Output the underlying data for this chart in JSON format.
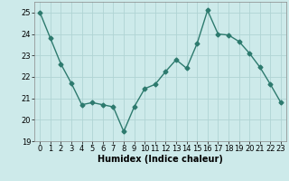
{
  "x": [
    0,
    1,
    2,
    3,
    4,
    5,
    6,
    7,
    8,
    9,
    10,
    11,
    12,
    13,
    14,
    15,
    16,
    17,
    18,
    19,
    20,
    21,
    22,
    23
  ],
  "y": [
    25.0,
    23.8,
    22.6,
    21.7,
    20.7,
    20.8,
    20.7,
    20.6,
    19.45,
    20.6,
    21.45,
    21.65,
    22.25,
    22.8,
    22.4,
    23.55,
    25.1,
    24.0,
    23.95,
    23.65,
    23.1,
    22.45,
    21.65,
    20.8
  ],
  "line_color": "#2d7a6e",
  "marker": "D",
  "markersize": 2.5,
  "linewidth": 1.0,
  "xlabel": "Humidex (Indice chaleur)",
  "ylim": [
    19,
    25.5
  ],
  "xlim": [
    -0.5,
    23.5
  ],
  "yticks": [
    19,
    20,
    21,
    22,
    23,
    24,
    25
  ],
  "xticks": [
    0,
    1,
    2,
    3,
    4,
    5,
    6,
    7,
    8,
    9,
    10,
    11,
    12,
    13,
    14,
    15,
    16,
    17,
    18,
    19,
    20,
    21,
    22,
    23
  ],
  "bg_color": "#cdeaea",
  "grid_color": "#b0d4d4",
  "label_fontsize": 7,
  "tick_fontsize": 6
}
